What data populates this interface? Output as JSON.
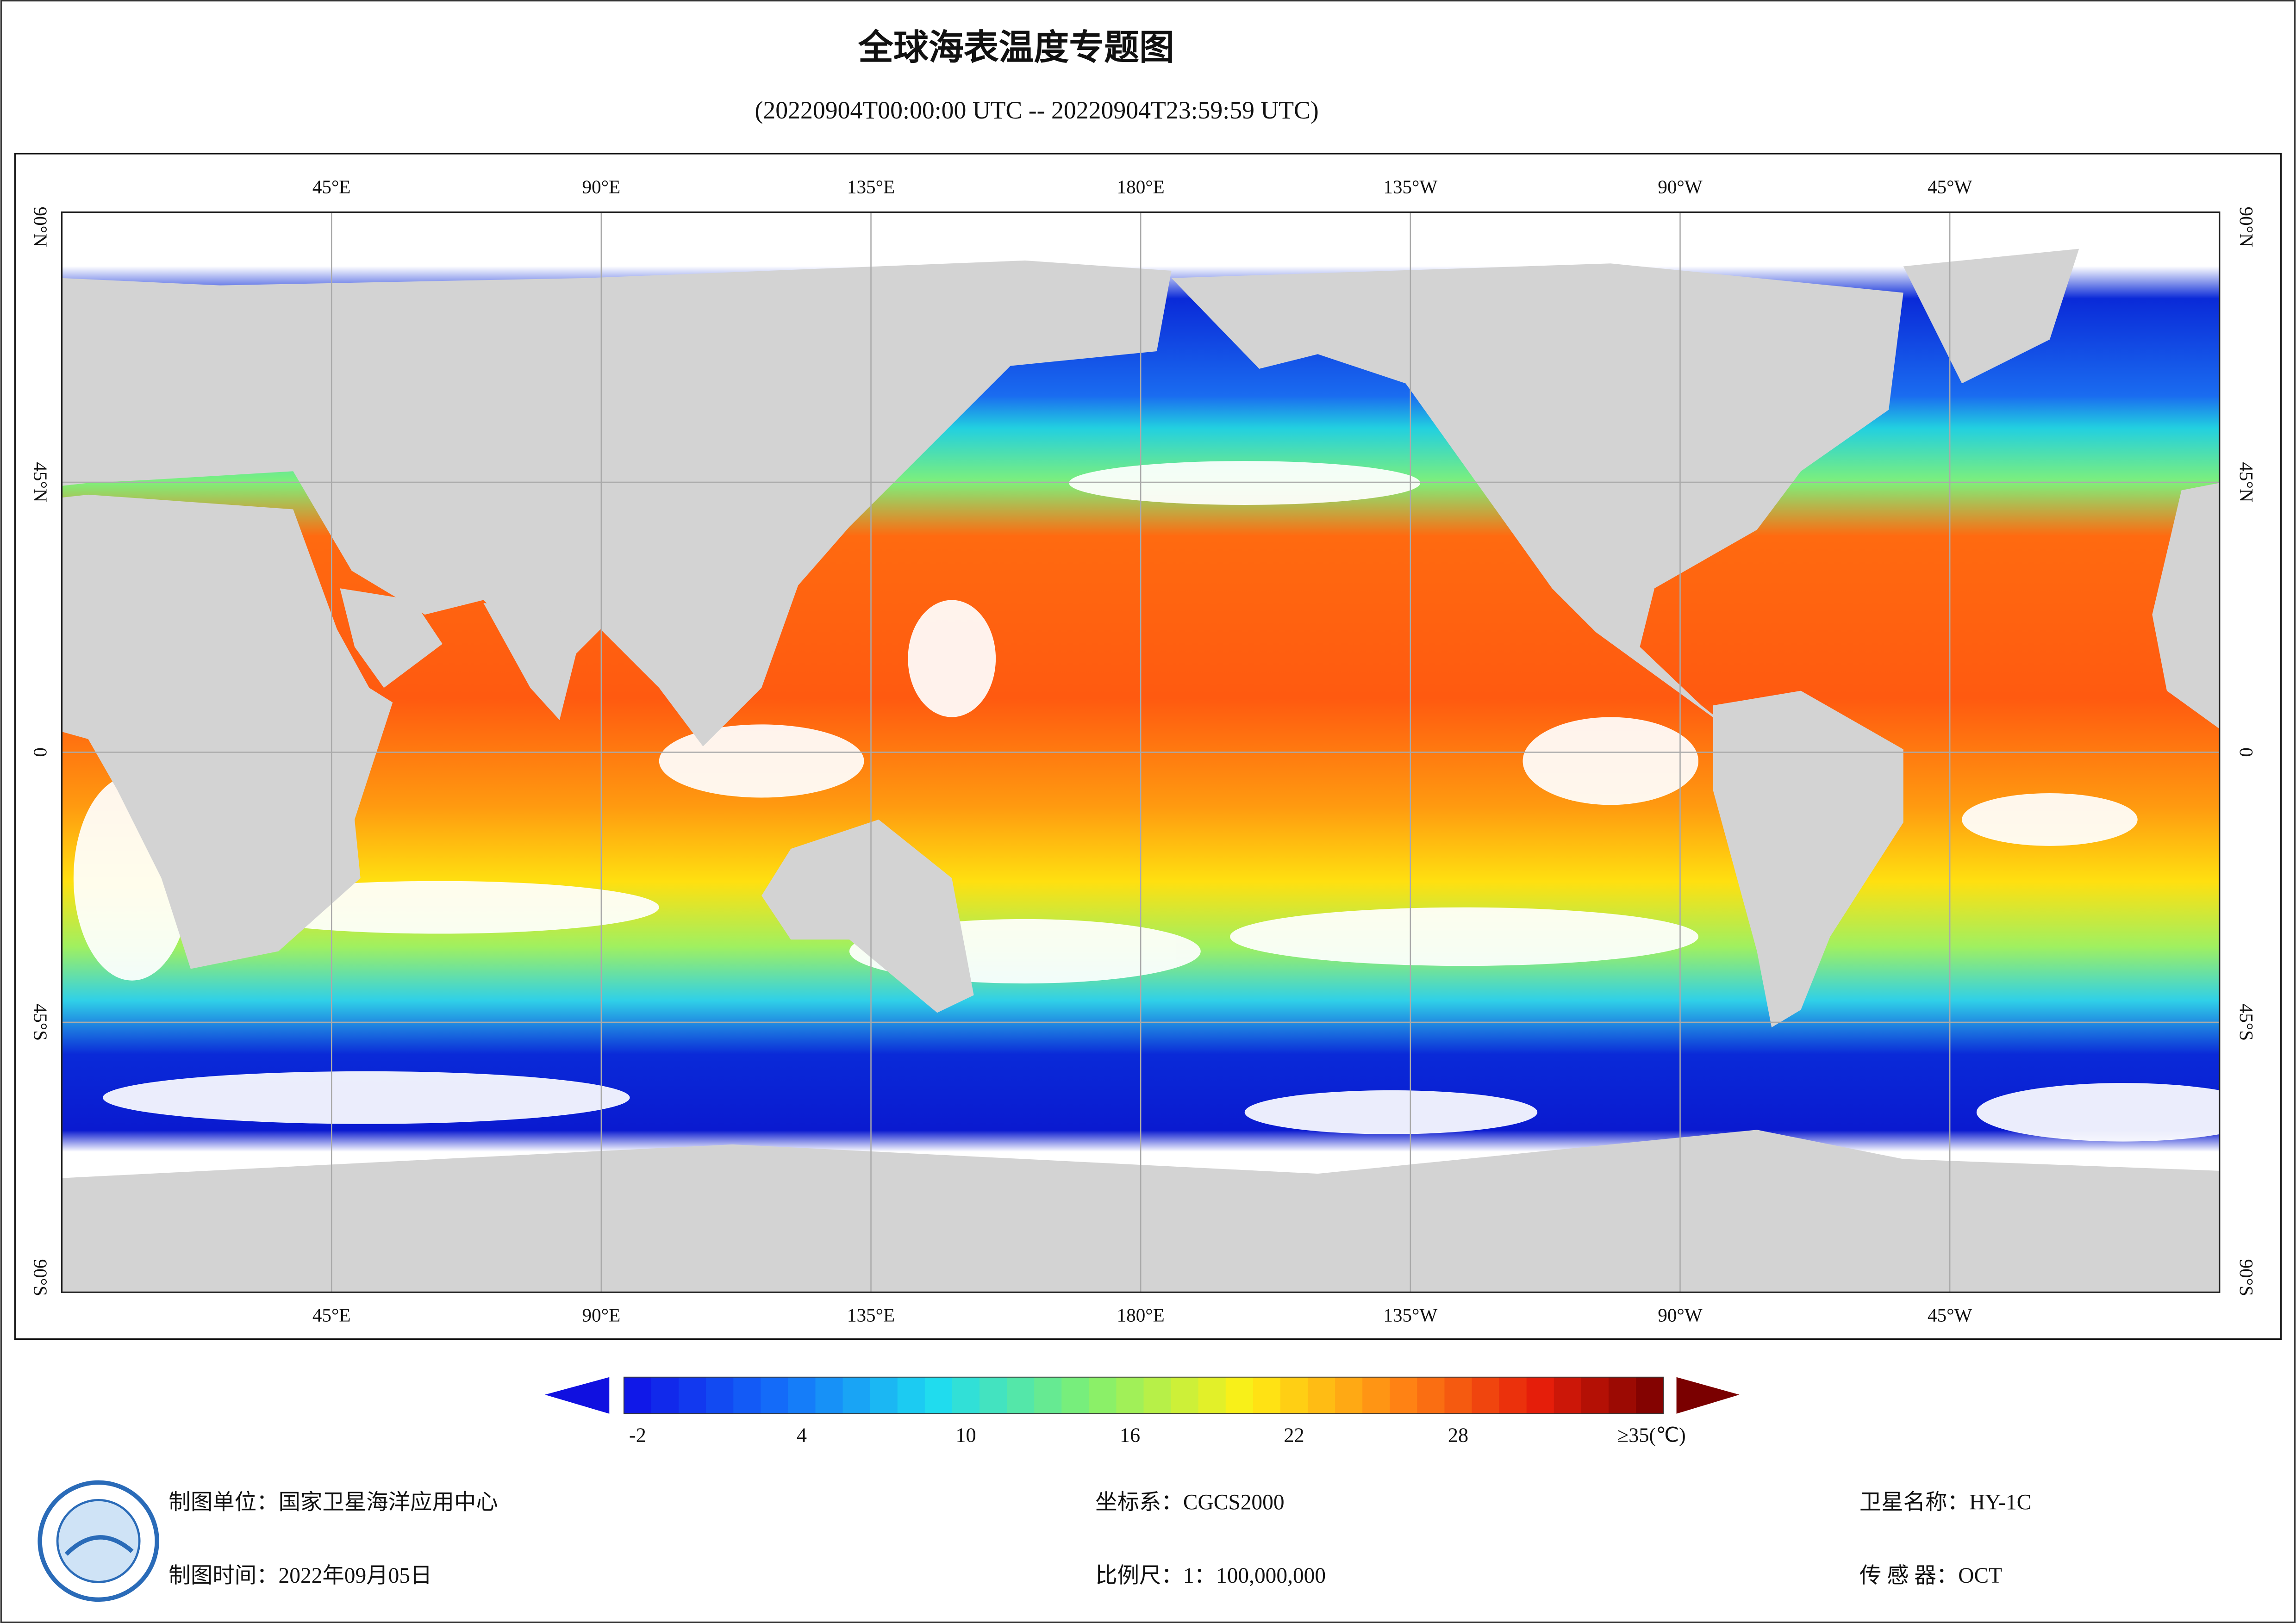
{
  "title": "全球海表温度专题图",
  "subtitle": "(20220904T00:00:00 UTC -- 20220904T23:59:59 UTC)",
  "map": {
    "longitude_labels": [
      "45°E",
      "90°E",
      "135°E",
      "180°E",
      "135°W",
      "90°W",
      "45°W"
    ],
    "latitude_labels": [
      "90°N",
      "45°N",
      "0",
      "45°S",
      "90°S"
    ]
  },
  "colorbar": {
    "range": [
      -2.5,
      35.5
    ],
    "ticks": [
      -2,
      4,
      10,
      16,
      22,
      28
    ],
    "max_label": "≥35(℃)"
  },
  "footer": {
    "left": [
      "制图单位：国家卫星海洋应用中心",
      "制图时间：2022年09月05日"
    ],
    "middle": [
      "坐标系：CGCS2000",
      "比例尺：1：100,000,000"
    ],
    "right": [
      "卫星名称：HY-1C",
      "传 感 器：OCT"
    ]
  }
}
